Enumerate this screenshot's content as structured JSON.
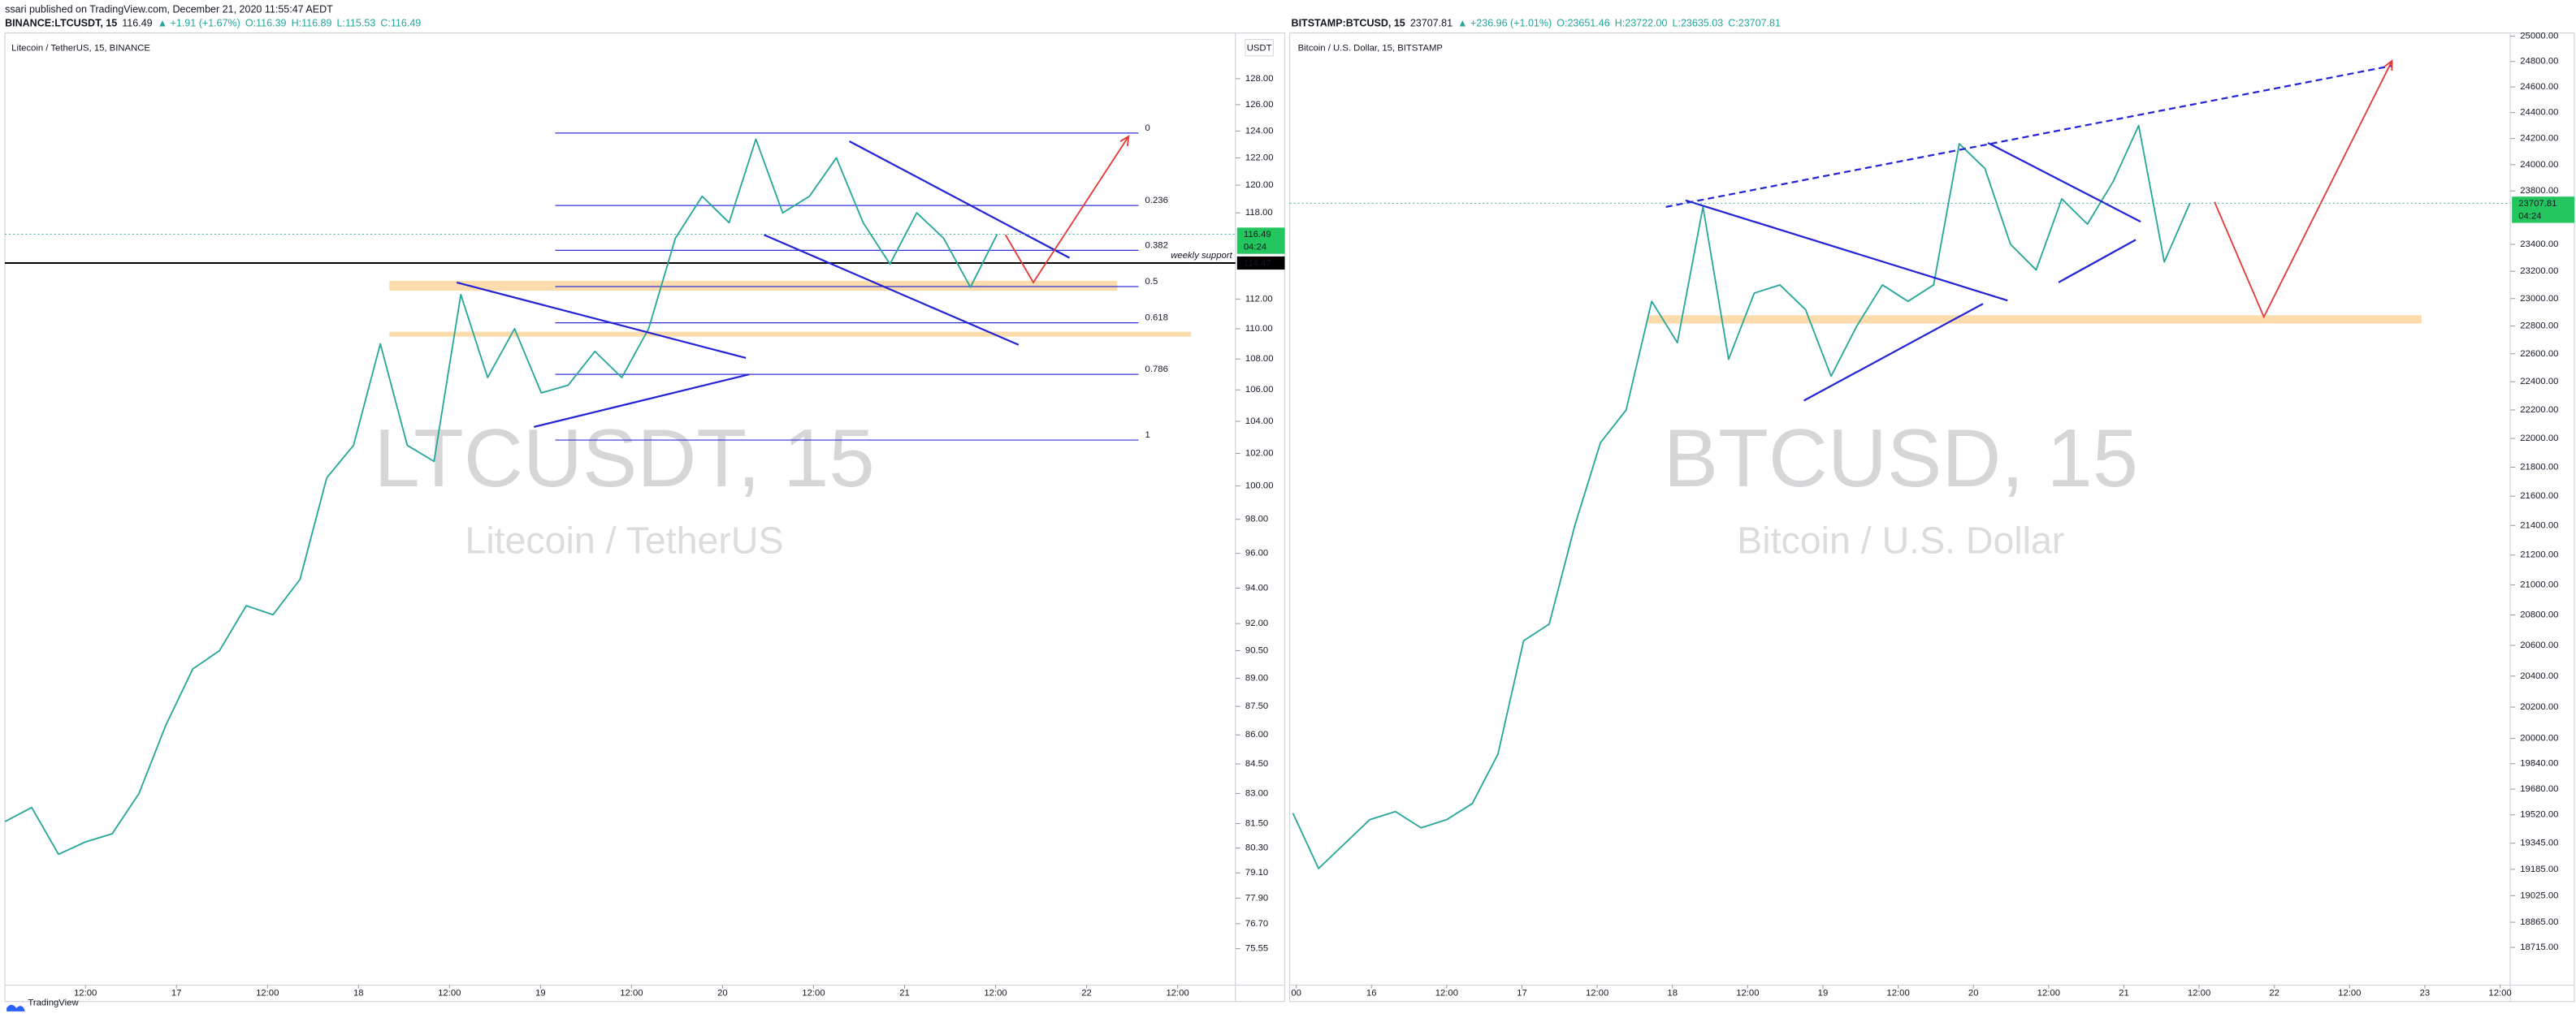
{
  "header": {
    "published": "ssari published on TradingView.com, December 21, 2020 11:55:47 AEDT",
    "left": {
      "symbol": "BINANCE:LTCUSDT, 15",
      "price": "116.49",
      "change": "▲ +1.91 (+1.67%)",
      "open": "O:116.39",
      "high": "H:116.89",
      "low": "L:115.53",
      "close": "C:116.49"
    },
    "right": {
      "symbol": "BITSTAMP:BTCUSD, 15",
      "price": "23707.81",
      "change": "▲ +236.96 (+1.01%)",
      "open": "O:23651.46",
      "high": "H:23722.00",
      "low": "L:23635.03",
      "close": "C:23707.81"
    }
  },
  "chart_data": [
    {
      "type": "line",
      "title": "Litecoin / TetherUS, 15, BINANCE",
      "currency": "USDT",
      "watermark": {
        "symbol": "LTCUSDT, 15",
        "name": "Litecoin / TetherUS"
      },
      "color": "#26a69a",
      "log_scale": true,
      "values": [
        81.6,
        82.3,
        80,
        80.6,
        81,
        83,
        86.5,
        89.5,
        90.5,
        93,
        92.5,
        94.5,
        100.5,
        102.5,
        109,
        102.5,
        101.5,
        112.3,
        106.8,
        110,
        105.8,
        106.3,
        108.5,
        106.8,
        110,
        116.2,
        119.2,
        117.3,
        123.4,
        118,
        119.2,
        122,
        117.3,
        114.4,
        118,
        116.2,
        112.8,
        116.49
      ],
      "ylim": [
        73.9,
        131.6
      ],
      "yticks": [
        {
          "value": 128,
          "label": "128.00"
        },
        {
          "value": 126,
          "label": "126.00"
        },
        {
          "value": 124,
          "label": "124.00"
        },
        {
          "value": 122,
          "label": "122.00"
        },
        {
          "value": 120,
          "label": "120.00"
        },
        {
          "value": 118,
          "label": "118.00"
        },
        {
          "value": 112,
          "label": "112.00"
        },
        {
          "value": 110,
          "label": "110.00"
        },
        {
          "value": 108,
          "label": "108.00"
        },
        {
          "value": 106,
          "label": "106.00"
        },
        {
          "value": 104,
          "label": "104.00"
        },
        {
          "value": 102,
          "label": "102.00"
        },
        {
          "value": 100,
          "label": "100.00"
        },
        {
          "value": 98,
          "label": "98.00"
        },
        {
          "value": 96,
          "label": "96.00"
        },
        {
          "value": 94,
          "label": "94.00"
        },
        {
          "value": 92,
          "label": "92.00"
        },
        {
          "value": 90.5,
          "label": "90.50"
        },
        {
          "value": 89,
          "label": "89.00"
        },
        {
          "value": 87.5,
          "label": "87.50"
        },
        {
          "value": 86,
          "label": "86.00"
        },
        {
          "value": 84.5,
          "label": "84.50"
        },
        {
          "value": 83,
          "label": "83.00"
        },
        {
          "value": 81.5,
          "label": "81.50"
        },
        {
          "value": 80.3,
          "label": "80.30"
        },
        {
          "value": 79.1,
          "label": "79.10"
        },
        {
          "value": 77.9,
          "label": "77.90"
        },
        {
          "value": 76.7,
          "label": "76.70"
        },
        {
          "value": 75.55,
          "label": "75.55"
        }
      ],
      "xtick_labels": [
        "12:00",
        "17",
        "12:00",
        "18",
        "12:00",
        "19",
        "12:00",
        "20",
        "12:00",
        "21",
        "12:00",
        "22",
        "12:00"
      ],
      "last_price": 116.49,
      "countdown": "04:24",
      "support": {
        "label": "weekly support",
        "value": 114.47
      },
      "fib_levels": [
        0,
        0.236,
        0.382,
        0.5,
        0.618,
        0.786,
        1
      ]
    },
    {
      "type": "line",
      "title": "Bitcoin / U.S. Dollar, 15, BITSTAMP",
      "watermark": {
        "symbol": "BTCUSD, 15",
        "name": "Bitcoin / U.S. Dollar"
      },
      "color": "#26a69a",
      "log_scale": true,
      "values": [
        19530,
        19190,
        19340,
        19490,
        19540,
        19440,
        19490,
        19590,
        19900,
        20630,
        20740,
        21400,
        21970,
        22200,
        22980,
        22680,
        23680,
        22560,
        23040,
        23100,
        22920,
        22440,
        22800,
        23100,
        22980,
        23100,
        24160,
        23970,
        23400,
        23210,
        23740,
        23550,
        23870,
        24300,
        23270,
        23707.81
      ],
      "ylim": [
        18492,
        25026
      ],
      "yticks": [
        {
          "value": 25000,
          "label": "25000.00"
        },
        {
          "value": 24800,
          "label": "24800.00"
        },
        {
          "value": 24600,
          "label": "24600.00"
        },
        {
          "value": 24400,
          "label": "24400.00"
        },
        {
          "value": 24200,
          "label": "24200.00"
        },
        {
          "value": 24000,
          "label": "24000.00"
        },
        {
          "value": 23800,
          "label": "23800.00"
        },
        {
          "value": 23400,
          "label": "23400.00"
        },
        {
          "value": 23200,
          "label": "23200.00"
        },
        {
          "value": 23000,
          "label": "23000.00"
        },
        {
          "value": 22800,
          "label": "22800.00"
        },
        {
          "value": 22600,
          "label": "22600.00"
        },
        {
          "value": 22400,
          "label": "22400.00"
        },
        {
          "value": 22200,
          "label": "22200.00"
        },
        {
          "value": 22000,
          "label": "22000.00"
        },
        {
          "value": 21800,
          "label": "21800.00"
        },
        {
          "value": 21600,
          "label": "21600.00"
        },
        {
          "value": 21400,
          "label": "21400.00"
        },
        {
          "value": 21200,
          "label": "21200.00"
        },
        {
          "value": 21000,
          "label": "21000.00"
        },
        {
          "value": 20800,
          "label": "20800.00"
        },
        {
          "value": 20600,
          "label": "20600.00"
        },
        {
          "value": 20400,
          "label": "20400.00"
        },
        {
          "value": 20200,
          "label": "20200.00"
        },
        {
          "value": 20000,
          "label": "20000.00"
        },
        {
          "value": 19840,
          "label": "19840.00"
        },
        {
          "value": 19680,
          "label": "19680.00"
        },
        {
          "value": 19520,
          "label": "19520.00"
        },
        {
          "value": 19345,
          "label": "19345.00"
        },
        {
          "value": 19185,
          "label": "19185.00"
        },
        {
          "value": 19025,
          "label": "19025.00"
        },
        {
          "value": 18865,
          "label": "18865.00"
        },
        {
          "value": 18715,
          "label": "18715.00"
        }
      ],
      "xtick_labels": [
        "00",
        "16",
        "12:00",
        "17",
        "12:00",
        "18",
        "12:00",
        "19",
        "12:00",
        "20",
        "12:00",
        "21",
        "12:00",
        "22",
        "12:00",
        "23",
        "12:00"
      ],
      "last_price": 23707.81,
      "countdown": "04:24"
    }
  ],
  "footer": {
    "brand": "TradingView"
  }
}
